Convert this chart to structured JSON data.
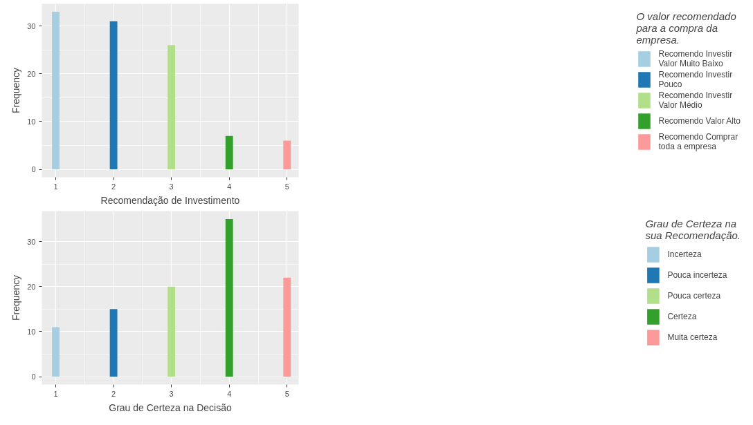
{
  "chart_data": [
    {
      "type": "bar",
      "xlabel": "Recomendação de Investimento",
      "ylabel": "Frequency",
      "legend_title": "O valor recomendado para a compra da empresa.",
      "xlim": [
        0.76,
        5.2
      ],
      "ylim": [
        -1.65,
        34.65
      ],
      "xticks": [
        1,
        2,
        3,
        4,
        5
      ],
      "yticks": [
        0,
        10,
        20,
        30
      ],
      "grid": true,
      "legend": "right",
      "series": [
        {
          "name": "Recomendo Investir Valor Muito Baixo",
          "color": "#a6cee3",
          "x": [
            1
          ],
          "values": [
            33
          ]
        },
        {
          "name": "Recomendo Investir Pouco",
          "color": "#1f78b4",
          "x": [
            2
          ],
          "values": [
            31
          ]
        },
        {
          "name": "Recomendo Investir Valor Médio",
          "color": "#b2df8a",
          "x": [
            3
          ],
          "values": [
            26
          ]
        },
        {
          "name": "Recomendo Valor Alto",
          "color": "#33a02c",
          "x": [
            4
          ],
          "values": [
            7
          ]
        },
        {
          "name": "Recomendo Comprar toda a empresa",
          "color": "#fb9a99",
          "x": [
            5
          ],
          "values": [
            6
          ]
        }
      ]
    },
    {
      "type": "bar",
      "xlabel": "Grau de Certeza na Decisão",
      "ylabel": "Frequency",
      "legend_title": "Grau de Certeza na sua Recomendação.",
      "xlim": [
        0.76,
        5.2
      ],
      "ylim": [
        -1.75,
        36.75
      ],
      "xticks": [
        1,
        2,
        3,
        4,
        5
      ],
      "yticks": [
        0,
        10,
        20,
        30
      ],
      "grid": true,
      "legend": "right",
      "series": [
        {
          "name": "Incerteza",
          "color": "#a6cee3",
          "x": [
            1
          ],
          "values": [
            11
          ]
        },
        {
          "name": "Pouca incerteza",
          "color": "#1f78b4",
          "x": [
            2
          ],
          "values": [
            15
          ]
        },
        {
          "name": "Pouca certeza",
          "color": "#b2df8a",
          "x": [
            3
          ],
          "values": [
            20
          ]
        },
        {
          "name": "Certeza",
          "color": "#33a02c",
          "x": [
            4
          ],
          "values": [
            35
          ]
        },
        {
          "name": "Muita certeza",
          "color": "#fb9a99",
          "x": [
            5
          ],
          "values": [
            22
          ]
        }
      ]
    }
  ]
}
